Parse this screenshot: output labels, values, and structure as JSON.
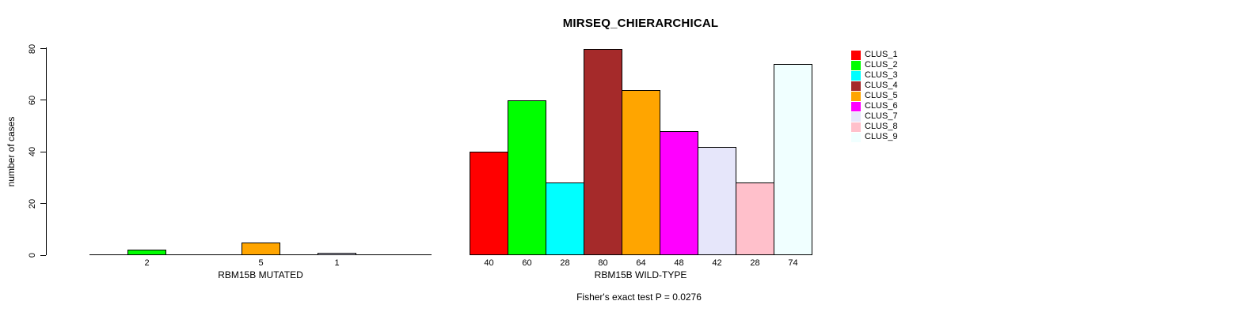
{
  "chart_data": {
    "type": "bar",
    "title": "MIRSEQ_CHIERARCHICAL",
    "ylabel": "number of cases",
    "ylim": [
      0,
      80
    ],
    "yticks": [
      0,
      20,
      40,
      60,
      80
    ],
    "grid": false,
    "legend_position": "right",
    "legend": [
      "CLUS_1",
      "CLUS_2",
      "CLUS_3",
      "CLUS_4",
      "CLUS_5",
      "CLUS_6",
      "CLUS_7",
      "CLUS_8",
      "CLUS_9"
    ],
    "legend_colors": [
      "#FF0000",
      "#00FF00",
      "#00FFFF",
      "#A52A2A",
      "#FFA500",
      "#FF00FF",
      "#E6E6FA",
      "#FFC0CB",
      "#F0FFFF"
    ],
    "panels": [
      {
        "xlabel": "RBM15B MUTATED",
        "categories": [
          "CLUS_1",
          "CLUS_2",
          "CLUS_3",
          "CLUS_4",
          "CLUS_5",
          "CLUS_6",
          "CLUS_7",
          "CLUS_8",
          "CLUS_9"
        ],
        "values": [
          0,
          2,
          0,
          0,
          5,
          0,
          1,
          0,
          0
        ],
        "shown_value_labels": [
          "2",
          "5",
          "1"
        ],
        "has_axis_line": true
      },
      {
        "xlabel": "RBM15B WILD-TYPE",
        "categories": [
          "CLUS_1",
          "CLUS_2",
          "CLUS_3",
          "CLUS_4",
          "CLUS_5",
          "CLUS_6",
          "CLUS_7",
          "CLUS_8",
          "CLUS_9"
        ],
        "values": [
          40,
          60,
          28,
          80,
          64,
          48,
          42,
          28,
          74
        ],
        "shown_value_labels": [
          "40",
          "60",
          "28",
          "80",
          "64",
          "48",
          "42",
          "28",
          "74"
        ],
        "has_axis_line": false
      }
    ],
    "annotation": "Fisher's exact test P = 0.0276"
  },
  "colors": {
    "background": "#FFFFFF",
    "axis": "#000000",
    "text": "#000000",
    "bar_border": "#000000"
  }
}
